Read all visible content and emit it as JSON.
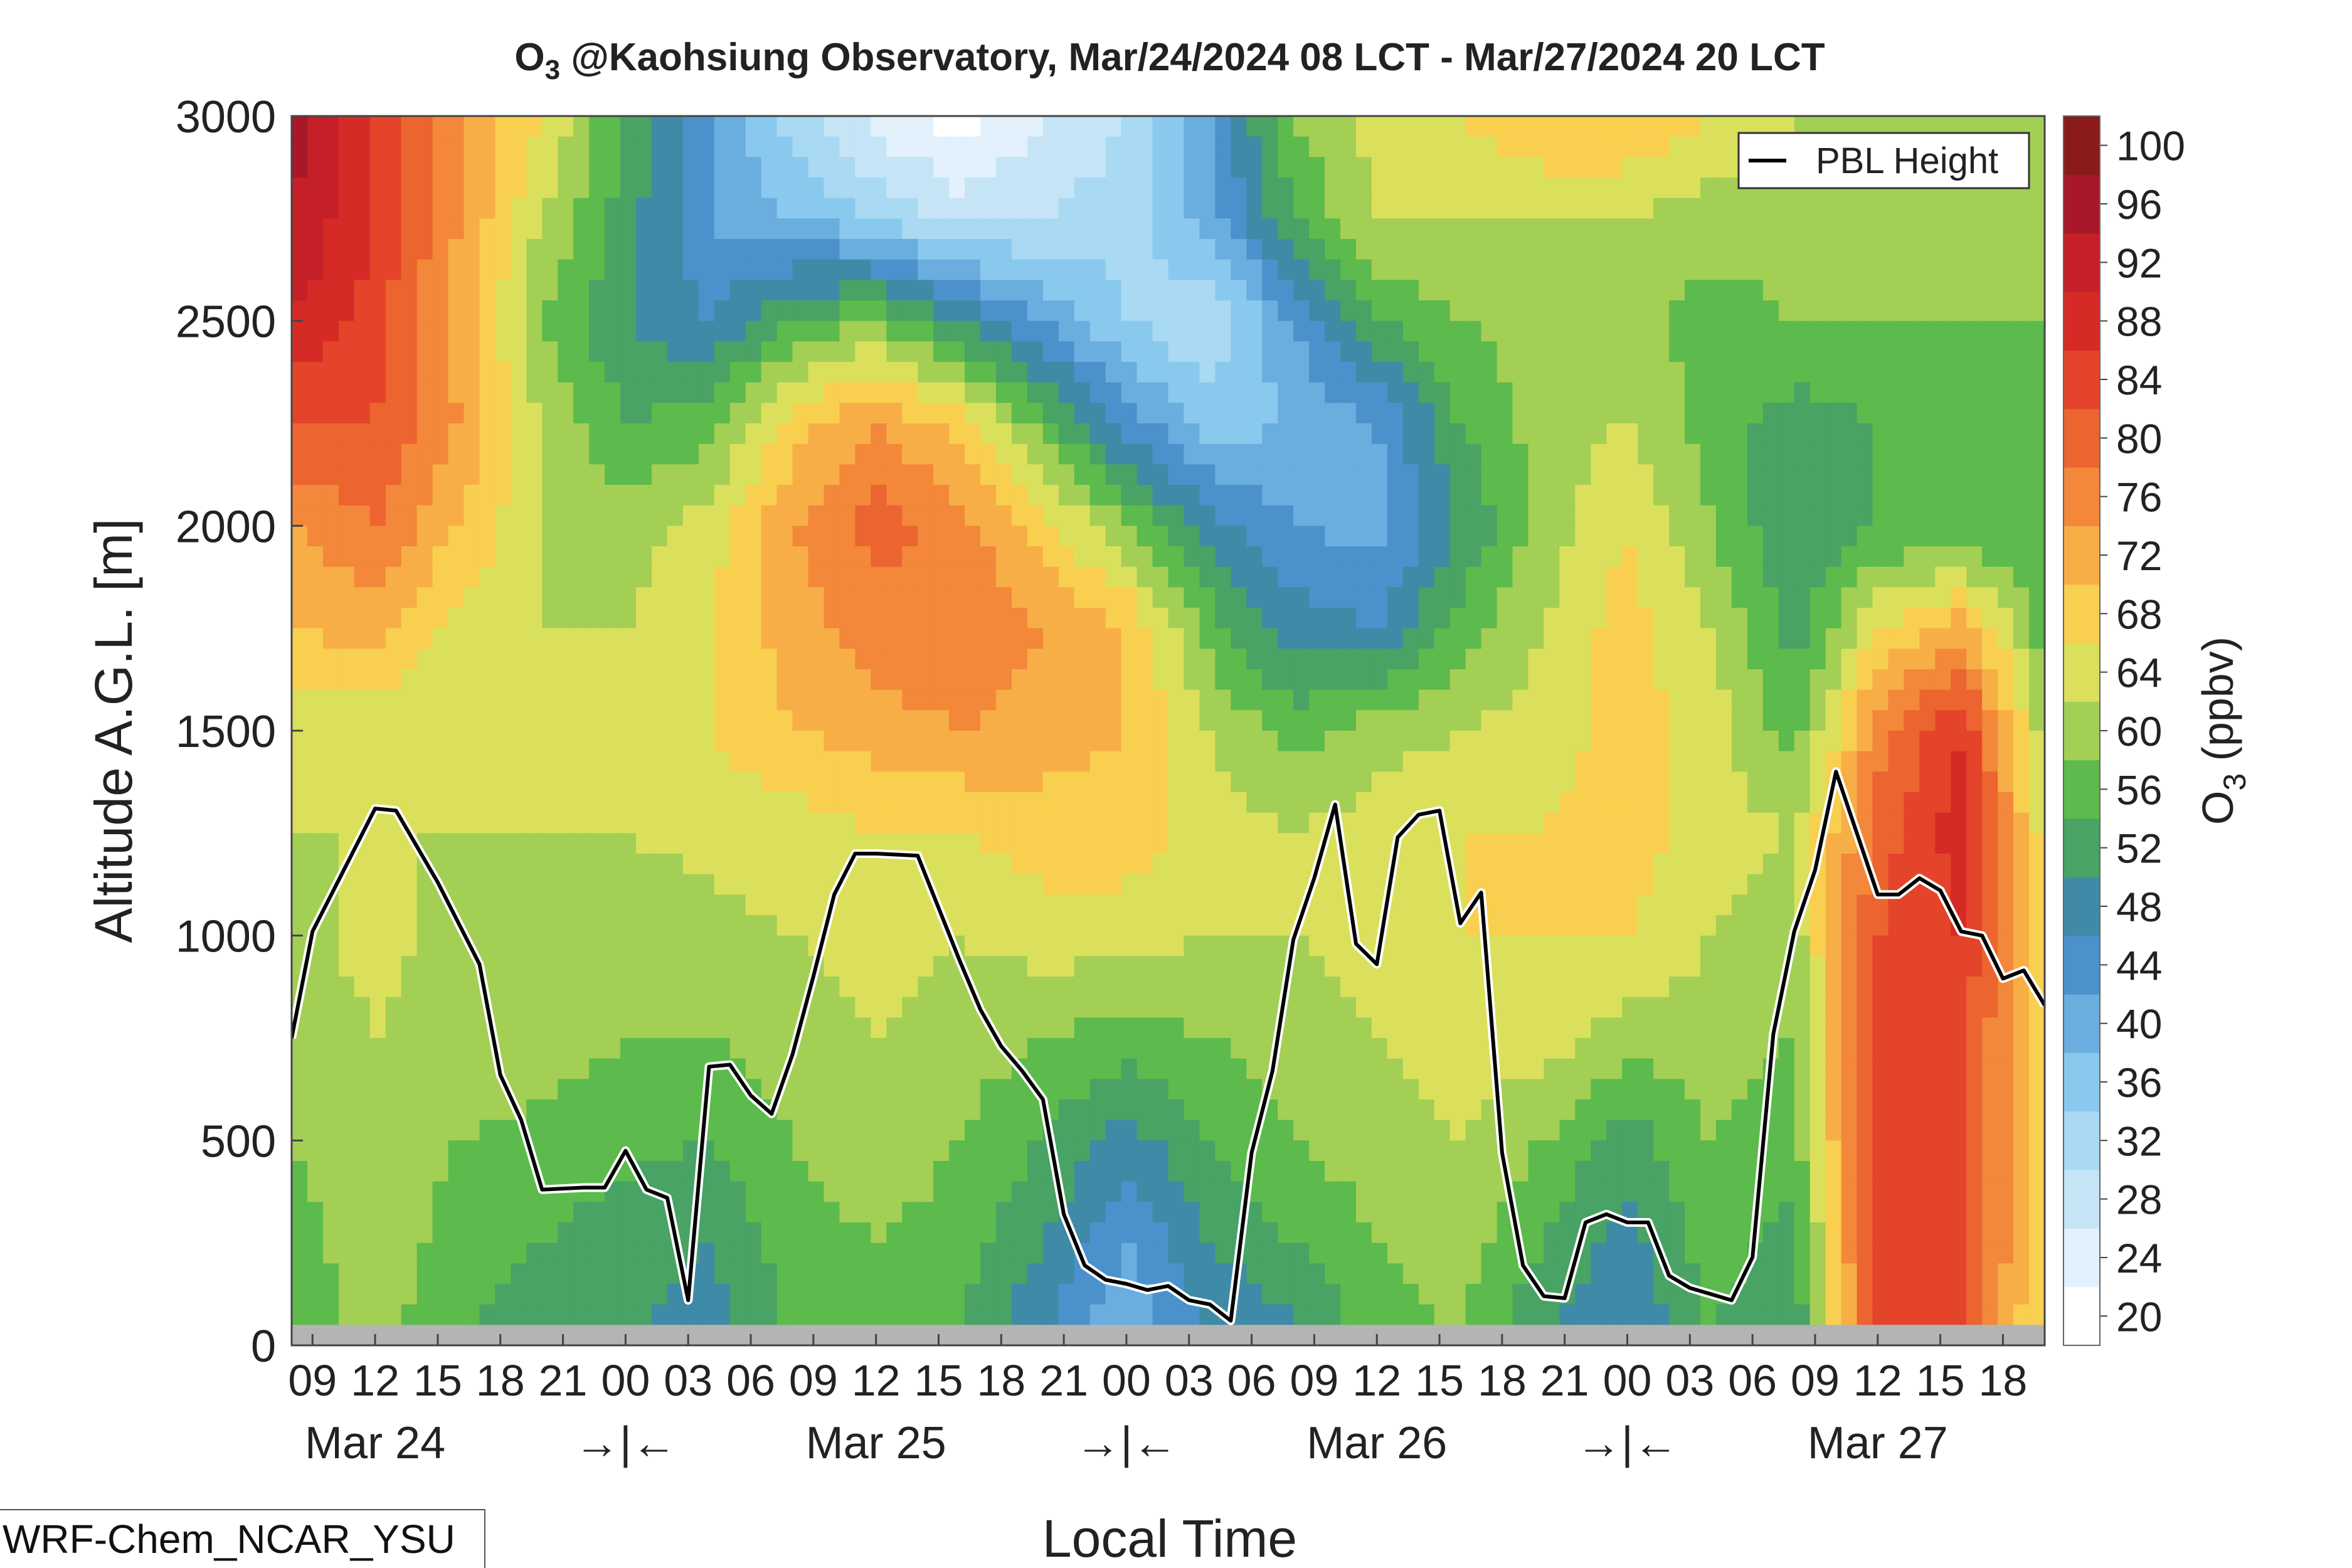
{
  "chart_data": {
    "type": "heatmap",
    "title_species": "O",
    "title_subscript": "3",
    "title_rest": " @Kaohsiung Observatory, Mar/24/2024 08 LCT - Mar/27/2024 20 LCT",
    "xlabel": "Local Time",
    "ylabel": "Altitude A.G.L. [m]",
    "colorbar_label_main": "O",
    "colorbar_label_sub": "3",
    "colorbar_label_unit": " (ppbv)",
    "ylim": [
      0,
      3000
    ],
    "y_ticks": [
      "0",
      "500",
      "1000",
      "1500",
      "2000",
      "2500",
      "3000"
    ],
    "x_range_hours": [
      8,
      92
    ],
    "x_ticks": [
      {
        "hour": 9,
        "label": "09"
      },
      {
        "hour": 12,
        "label": "12"
      },
      {
        "hour": 15,
        "label": "15"
      },
      {
        "hour": 18,
        "label": "18"
      },
      {
        "hour": 21,
        "label": "21"
      },
      {
        "hour": 24,
        "label": "00"
      },
      {
        "hour": 27,
        "label": "03"
      },
      {
        "hour": 30,
        "label": "06"
      },
      {
        "hour": 33,
        "label": "09"
      },
      {
        "hour": 36,
        "label": "12"
      },
      {
        "hour": 39,
        "label": "15"
      },
      {
        "hour": 42,
        "label": "18"
      },
      {
        "hour": 45,
        "label": "21"
      },
      {
        "hour": 48,
        "label": "00"
      },
      {
        "hour": 51,
        "label": "03"
      },
      {
        "hour": 54,
        "label": "06"
      },
      {
        "hour": 57,
        "label": "09"
      },
      {
        "hour": 60,
        "label": "12"
      },
      {
        "hour": 63,
        "label": "15"
      },
      {
        "hour": 66,
        "label": "18"
      },
      {
        "hour": 69,
        "label": "21"
      },
      {
        "hour": 72,
        "label": "00"
      },
      {
        "hour": 75,
        "label": "03"
      },
      {
        "hour": 78,
        "label": "06"
      },
      {
        "hour": 81,
        "label": "09"
      },
      {
        "hour": 84,
        "label": "12"
      },
      {
        "hour": 87,
        "label": "15"
      },
      {
        "hour": 90,
        "label": "18"
      }
    ],
    "day_labels": [
      {
        "hour": 12,
        "label": "Mar 24"
      },
      {
        "hour": 24,
        "label": "→|←"
      },
      {
        "hour": 36,
        "label": "Mar 25"
      },
      {
        "hour": 48,
        "label": "→|←"
      },
      {
        "hour": 60,
        "label": "Mar 26"
      },
      {
        "hour": 72,
        "label": "→|←"
      },
      {
        "hour": 84,
        "label": "Mar 27"
      }
    ],
    "colorbar": {
      "levels": [
        20,
        24,
        28,
        32,
        36,
        40,
        44,
        48,
        52,
        56,
        60,
        64,
        68,
        72,
        76,
        80,
        84,
        88,
        92,
        96,
        100
      ],
      "tick_labels": [
        "20",
        "24",
        "28",
        "32",
        "36",
        "40",
        "44",
        "48",
        "52",
        "56",
        "60",
        "64",
        "68",
        "72",
        "76",
        "80",
        "84",
        "88",
        "92",
        "96",
        "100"
      ],
      "colors": [
        "#ffffff",
        "#e2f1fb",
        "#c5e5f7",
        "#a9d9f3",
        "#8ac9ee",
        "#6aaee0",
        "#4b92cc",
        "#3f8aa6",
        "#48a364",
        "#5dba4c",
        "#a3cf55",
        "#dbe05c",
        "#f9cf4f",
        "#f8ae47",
        "#f3873a",
        "#ec6430",
        "#e4442a",
        "#d62a27",
        "#c51f27",
        "#a8172a",
        "#8b1a1a"
      ]
    },
    "ground_band": {
      "ymax": 50,
      "color": "#b4b4b4"
    },
    "ozone_field": {
      "times": [
        8,
        12,
        16,
        20,
        24,
        28,
        32,
        36,
        40,
        44,
        48,
        52,
        56,
        60,
        64,
        68,
        72,
        76,
        80,
        84,
        88,
        92
      ],
      "altitudes": [
        0,
        250,
        500,
        750,
        1000,
        1250,
        1500,
        1750,
        2000,
        2250,
        2500,
        2750,
        3000
      ],
      "values": [
        [
          56,
          62,
          56,
          54,
          52,
          50,
          56,
          58,
          56,
          48,
          40,
          48,
          50,
          58,
          60,
          52,
          48,
          56,
          52,
          86,
          84,
          66
        ],
        [
          58,
          63,
          58,
          56,
          54,
          52,
          58,
          60,
          58,
          52,
          44,
          52,
          56,
          60,
          62,
          56,
          50,
          58,
          54,
          88,
          86,
          68
        ],
        [
          60,
          64,
          60,
          59,
          57,
          56,
          60,
          63,
          60,
          56,
          50,
          56,
          60,
          62,
          64,
          60,
          54,
          60,
          58,
          88,
          86,
          68
        ],
        [
          62,
          64,
          62,
          62,
          60,
          60,
          62,
          64,
          62,
          60,
          58,
          60,
          62,
          64,
          66,
          66,
          62,
          62,
          60,
          86,
          86,
          68
        ],
        [
          63,
          65,
          63,
          63,
          62,
          63,
          64,
          66,
          64,
          66,
          66,
          64,
          64,
          66,
          68,
          68,
          68,
          64,
          62,
          84,
          88,
          66
        ],
        [
          64,
          64,
          64,
          64,
          64,
          65,
          66,
          68,
          68,
          70,
          70,
          66,
          64,
          66,
          68,
          68,
          70,
          66,
          64,
          82,
          90,
          66
        ],
        [
          66,
          64,
          64,
          64,
          66,
          68,
          72,
          74,
          76,
          74,
          72,
          64,
          58,
          62,
          64,
          66,
          70,
          66,
          58,
          78,
          88,
          62
        ],
        [
          72,
          74,
          66,
          64,
          64,
          68,
          74,
          78,
          80,
          76,
          72,
          58,
          50,
          48,
          58,
          64,
          70,
          64,
          54,
          68,
          74,
          58
        ],
        [
          76,
          80,
          72,
          64,
          62,
          66,
          76,
          82,
          78,
          70,
          60,
          50,
          44,
          42,
          52,
          62,
          68,
          60,
          52,
          56,
          56,
          56
        ],
        [
          84,
          84,
          76,
          64,
          56,
          58,
          70,
          76,
          70,
          58,
          46,
          38,
          40,
          44,
          56,
          62,
          64,
          58,
          54,
          56,
          56,
          58
        ],
        [
          92,
          86,
          74,
          60,
          52,
          48,
          56,
          60,
          52,
          44,
          36,
          32,
          44,
          56,
          60,
          62,
          62,
          58,
          60,
          60,
          60,
          60
        ],
        [
          96,
          88,
          76,
          64,
          54,
          44,
          40,
          36,
          30,
          32,
          34,
          42,
          56,
          64,
          64,
          64,
          64,
          62,
          62,
          62,
          62,
          62
        ],
        [
          98,
          88,
          76,
          68,
          56,
          44,
          34,
          26,
          22,
          28,
          32,
          44,
          60,
          66,
          68,
          72,
          72,
          68,
          64,
          62,
          62,
          62
        ]
      ]
    },
    "series": [
      {
        "name": "PBL Height",
        "color": "#000000",
        "x": [
          8,
          9,
          12,
          13,
          15,
          17,
          18,
          19,
          20,
          22,
          23,
          24,
          25,
          26,
          27,
          28,
          29,
          30,
          31,
          32,
          33,
          34,
          35,
          36,
          38,
          40,
          41,
          42,
          43,
          44,
          45,
          46,
          47,
          48,
          49,
          50,
          51,
          52,
          53,
          54,
          55,
          56,
          57,
          58,
          59,
          60,
          61,
          62,
          63,
          64,
          65,
          66,
          67,
          68,
          69,
          70,
          71,
          72,
          73,
          74,
          75,
          76,
          77,
          78,
          79,
          80,
          81,
          82,
          84,
          85,
          86,
          87,
          88,
          89,
          90,
          91,
          92
        ],
        "y": [
          750,
          1010,
          1310,
          1305,
          1130,
          930,
          660,
          550,
          380,
          385,
          385,
          475,
          380,
          360,
          110,
          680,
          685,
          610,
          565,
          710,
          900,
          1100,
          1200,
          1200,
          1195,
          940,
          820,
          730,
          670,
          600,
          320,
          195,
          160,
          150,
          135,
          145,
          110,
          100,
          60,
          470,
          670,
          990,
          1140,
          1320,
          980,
          930,
          1240,
          1295,
          1305,
          1030,
          1105,
          470,
          195,
          120,
          115,
          300,
          320,
          300,
          300,
          170,
          140,
          125,
          110,
          215,
          760,
          1010,
          1160,
          1400,
          1100,
          1100,
          1140,
          1110,
          1010,
          1000,
          895,
          915,
          830
        ]
      }
    ],
    "legend": {
      "position": "top-right",
      "entries": [
        "PBL Height"
      ]
    }
  },
  "model_label": "WRF-Chem_NCAR_YSU"
}
